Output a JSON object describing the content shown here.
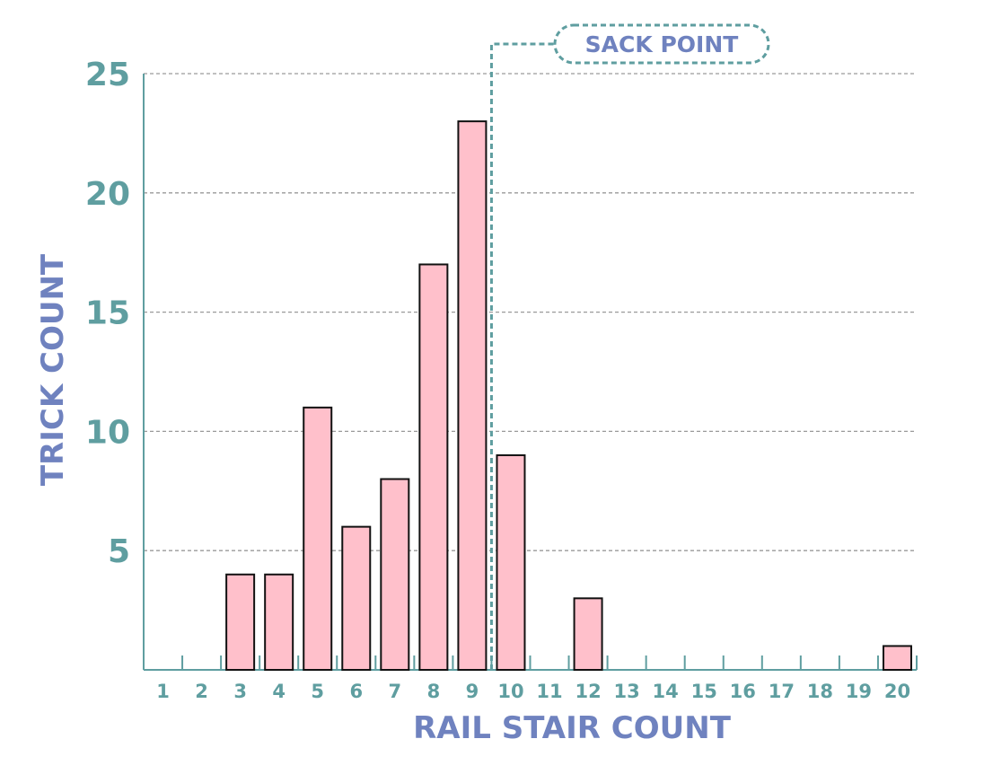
{
  "chart_data": {
    "type": "bar",
    "xlabel": "RAIL STAIR COUNT",
    "ylabel": "TRICK COUNT",
    "categories": [
      "1",
      "2",
      "3",
      "4",
      "5",
      "6",
      "7",
      "8",
      "9",
      "10",
      "11",
      "12",
      "13",
      "14",
      "15",
      "16",
      "17",
      "18",
      "19",
      "20"
    ],
    "values": [
      0,
      0,
      4,
      4,
      11,
      6,
      8,
      17,
      23,
      9,
      0,
      3,
      0,
      0,
      0,
      0,
      0,
      0,
      0,
      1
    ],
    "ylim": [
      0,
      25
    ],
    "yticks": [
      5,
      10,
      15,
      20,
      25
    ],
    "grid": true,
    "bar_color": "#ffc0cb",
    "bar_edge_color": "#111111",
    "axis_color": "#5f9ea0",
    "label_color": "#6f82bf",
    "annotation": {
      "text": "SACK POINT",
      "x_position": 9.5
    }
  }
}
